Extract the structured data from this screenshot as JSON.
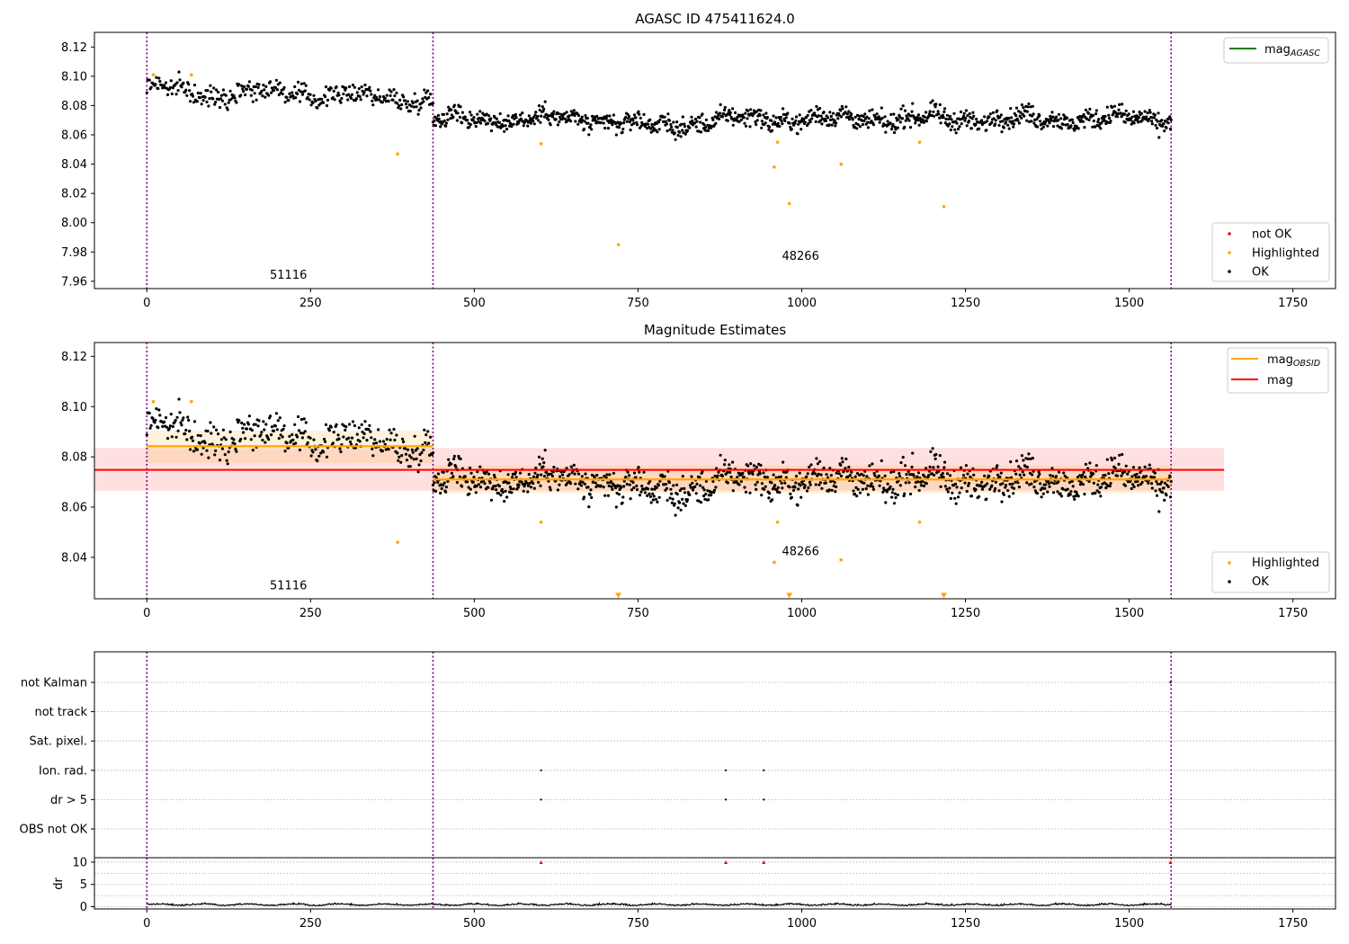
{
  "figure": {
    "title": "AGASC ID 475411624.0"
  },
  "chart_data": [
    {
      "id": "panel-agasc",
      "type": "scatter",
      "title": "",
      "xlim": [
        -80,
        1815
      ],
      "ylim": [
        7.955,
        8.13
      ],
      "xticks": [
        0,
        250,
        500,
        750,
        1000,
        1250,
        1500,
        1750
      ],
      "yticks": [
        7.96,
        7.98,
        8.0,
        8.02,
        8.04,
        8.06,
        8.08,
        8.1,
        8.12
      ],
      "ytick_decimals": 2,
      "grid": false,
      "obsid_boundaries": [
        0,
        437,
        1564
      ],
      "obsid_labels": [
        {
          "x": 218,
          "y": 7.963,
          "text": "51116"
        },
        {
          "x": 1000,
          "y": 7.976,
          "text": "48266"
        }
      ],
      "series": [
        {
          "name": "OK",
          "color": "#000000",
          "segments": [
            {
              "x0": 0,
              "x1": 437,
              "n": 330,
              "y0": 8.093,
              "y1": 8.084,
              "noise": 0.006,
              "dip": {
                "center": 80,
                "width": 40,
                "depth": 0.004
              }
            },
            {
              "x0": 437,
              "x1": 1564,
              "n": 1100,
              "y0": 8.071,
              "y1": 8.071,
              "noise": 0.006,
              "dip": {
                "center": 780,
                "width": 70,
                "depth": 0.005
              }
            }
          ]
        },
        {
          "name": "Highlighted",
          "color": "#FFA500",
          "x": [
            10,
            68,
            383,
            602,
            720,
            958,
            963,
            981,
            1060,
            1180,
            1217
          ],
          "y": [
            8.101,
            8.101,
            8.047,
            8.054,
            7.985,
            8.038,
            8.055,
            8.013,
            8.04,
            8.055,
            8.011
          ]
        },
        {
          "name": "not OK",
          "color": "#FF0000",
          "x": [],
          "y": []
        }
      ],
      "lines": [
        {
          "name": "mag_AGASC",
          "color": "#008000",
          "y": null
        }
      ],
      "legends": {
        "top-right": [
          "mag_AGASC"
        ],
        "bottom-right": [
          "not OK",
          "Highlighted",
          "OK"
        ]
      }
    },
    {
      "id": "panel-estimates",
      "type": "scatter",
      "title": "Magnitude Estimates",
      "xlim": [
        -80,
        1815
      ],
      "ylim": [
        8.0235,
        8.1255
      ],
      "xticks": [
        0,
        250,
        500,
        750,
        1000,
        1250,
        1500,
        1750
      ],
      "yticks": [
        8.04,
        8.06,
        8.08,
        8.1,
        8.12
      ],
      "ytick_decimals": 2,
      "grid": false,
      "obsid_boundaries": [
        0,
        437,
        1564
      ],
      "obsid_labels": [
        {
          "x": 218,
          "y": 8.028,
          "text": "51116"
        },
        {
          "x": 1000,
          "y": 8.0415,
          "text": "48266"
        }
      ],
      "bands": [
        {
          "name": "mag",
          "x0": -80,
          "x1": 1645,
          "y_lo": 8.0665,
          "y_hi": 8.0835,
          "color": "#FF0000",
          "opacity": 0.12
        },
        {
          "name": "mag_OBSID 51116",
          "x0": 0,
          "x1": 437,
          "y_lo": 8.0775,
          "y_hi": 8.0905,
          "color": "#FFA500",
          "opacity": 0.14
        },
        {
          "name": "mag_OBSID 48266",
          "x0": 437,
          "x1": 1564,
          "y_lo": 8.0655,
          "y_hi": 8.0765,
          "color": "#FFA500",
          "opacity": 0.14
        }
      ],
      "hlines": [
        {
          "name": "mag",
          "x0": -80,
          "x1": 1645,
          "y": 8.0748,
          "color": "#FF0000",
          "width": 2
        },
        {
          "name": "mag_OBSID",
          "x0": 0,
          "x1": 437,
          "y": 8.0842,
          "color": "#FFA500",
          "width": 2.2
        },
        {
          "name": "mag_OBSID",
          "x0": 437,
          "x1": 1564,
          "y": 8.071,
          "color": "#FFA500",
          "width": 2.2
        }
      ],
      "series": [
        {
          "name": "OK",
          "color": "#000000",
          "segments": [
            {
              "x0": 0,
              "x1": 437,
              "n": 330,
              "y0": 8.093,
              "y1": 8.084,
              "noise": 0.006,
              "dip": {
                "center": 80,
                "width": 40,
                "depth": 0.004
              }
            },
            {
              "x0": 437,
              "x1": 1564,
              "n": 1100,
              "y0": 8.071,
              "y1": 8.071,
              "noise": 0.006,
              "dip": {
                "center": 780,
                "width": 70,
                "depth": 0.005
              }
            }
          ]
        },
        {
          "name": "Highlighted",
          "color": "#FFA500",
          "x": [
            10,
            68,
            383,
            602,
            958,
            963,
            1060,
            1180
          ],
          "y": [
            8.102,
            8.102,
            8.046,
            8.054,
            8.038,
            8.054,
            8.039,
            8.054
          ]
        },
        {
          "name": "out-of-range markers",
          "color": "#FFA500",
          "marker": "triangle-down",
          "x": [
            720,
            981,
            1217
          ],
          "y": [
            8.0248,
            8.0248,
            8.0248
          ]
        }
      ],
      "legends": {
        "top-right": [
          "mag_OBSID",
          "mag"
        ],
        "bottom-right": [
          "Highlighted",
          "OK"
        ]
      }
    },
    {
      "id": "panel-flags",
      "type": "scatter",
      "title": "",
      "xlim": [
        -80,
        1815
      ],
      "categories": [
        "not Kalman",
        "not track",
        "Sat. pixel.",
        "Ion. rad.",
        "dr > 5",
        "OBS not OK"
      ],
      "obsid_boundaries": [
        0,
        437,
        1564
      ],
      "flag_points": [
        {
          "category": "Ion. rad.",
          "x": [
            602,
            884,
            942
          ]
        },
        {
          "category": "dr > 5",
          "x": [
            602,
            884,
            942
          ]
        },
        {
          "category": "not Kalman",
          "x": [
            1563
          ]
        }
      ]
    },
    {
      "id": "panel-dr",
      "type": "line",
      "title": "",
      "xlim": [
        -80,
        1815
      ],
      "ylim": [
        -0.5,
        11
      ],
      "xticks": [
        0,
        250,
        500,
        750,
        1000,
        1250,
        1500,
        1750
      ],
      "yticks": [
        0,
        5,
        10
      ],
      "ylabel": "dr",
      "obsid_boundaries": [
        0,
        437,
        1564
      ],
      "series": [
        {
          "name": "dr",
          "color": "#000000",
          "x_range": [
            0,
            1564
          ],
          "n": 1430,
          "mean": 0.35,
          "noise": 0.3
        }
      ],
      "clipped_markers": {
        "color": "#FF0000",
        "x": [
          602,
          884,
          942,
          1563
        ],
        "y": 10
      }
    }
  ]
}
